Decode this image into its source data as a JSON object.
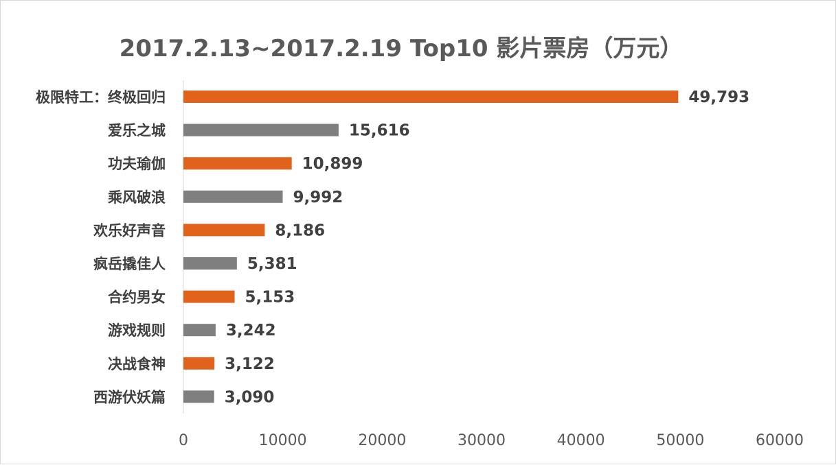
{
  "chart_data": {
    "type": "bar",
    "orientation": "horizontal",
    "title": "2017.2.13~2017.2.19 Top10 影片票房（万元）",
    "categories": [
      "极限特工：终极回归",
      "爱乐之城",
      "功夫瑜伽",
      "乘风破浪",
      "欢乐好声音",
      "疯岳撬佳人",
      "合约男女",
      "游戏规则",
      "决战食神",
      "西游伏妖篇"
    ],
    "values": [
      49793,
      15616,
      10899,
      9992,
      8186,
      5381,
      5153,
      3242,
      3122,
      3090
    ],
    "value_labels": [
      "49,793",
      "15,616",
      "10,899",
      "9,992",
      "8,186",
      "5,381",
      "5,153",
      "3,242",
      "3,122",
      "3,090"
    ],
    "xlim": [
      0,
      60000
    ],
    "x_ticks": [
      0,
      10000,
      20000,
      30000,
      40000,
      50000,
      60000
    ],
    "x_tick_labels": [
      "0",
      "10000",
      "20000",
      "30000",
      "40000",
      "50000",
      "60000"
    ],
    "xlabel": "",
    "ylabel": "",
    "grid": false,
    "legend": "none",
    "colors": [
      "#e0621b",
      "#7f7f7f"
    ]
  }
}
